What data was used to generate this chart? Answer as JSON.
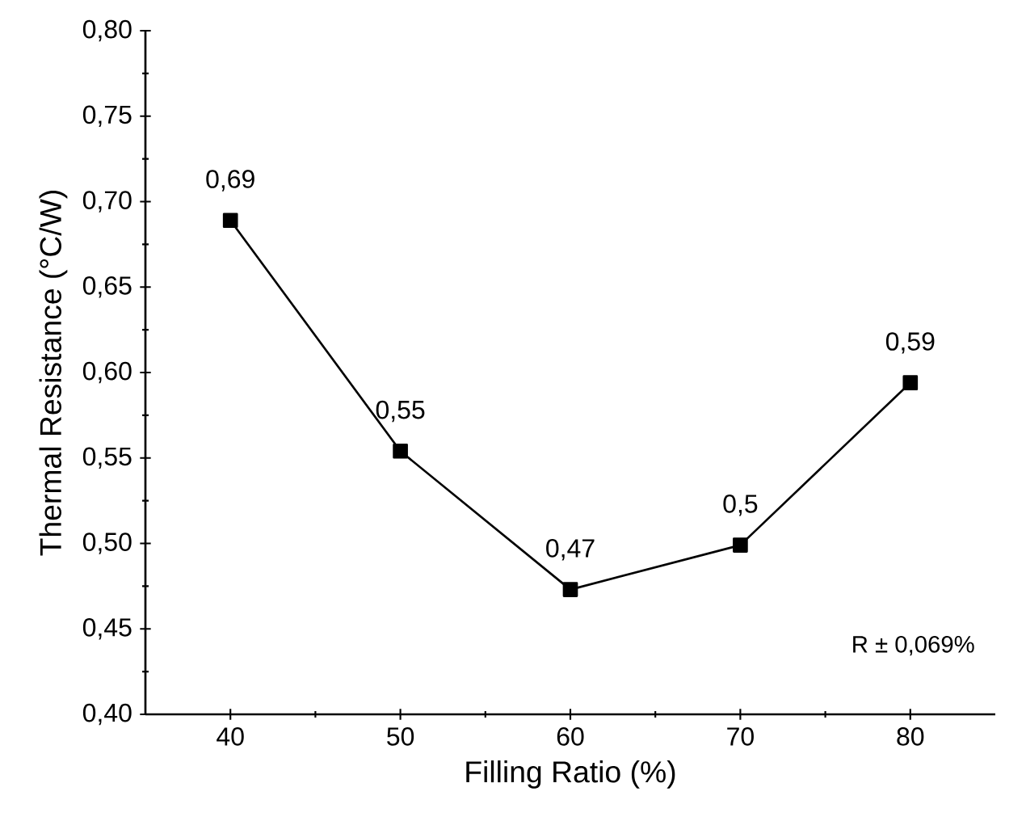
{
  "chart_data": {
    "type": "line",
    "xlabel": "Filling Ratio (%)",
    "ylabel": "Thermal Resistance (°C/W)",
    "x": [
      40,
      50,
      60,
      70,
      80
    ],
    "series": [
      {
        "color": "#000000",
        "values": [
          0.689,
          0.554,
          0.473,
          0.499,
          0.594
        ],
        "value_labels": [
          "0,69",
          "0,55",
          "0,47",
          "0,5",
          "0,59"
        ]
      }
    ],
    "xlim": [
      35,
      85
    ],
    "xticks": [
      40,
      50,
      60,
      70,
      80
    ],
    "ylim": [
      0.4,
      0.8
    ],
    "yticks": [
      {
        "value": 0.4,
        "label": "0,40"
      },
      {
        "value": 0.45,
        "label": "0,45"
      },
      {
        "value": 0.5,
        "label": "0,50"
      },
      {
        "value": 0.55,
        "label": "0,55"
      },
      {
        "value": 0.6,
        "label": "0,60"
      },
      {
        "value": 0.65,
        "label": "0,65"
      },
      {
        "value": 0.7,
        "label": "0,70"
      },
      {
        "value": 0.75,
        "label": "0,75"
      },
      {
        "value": 0.8,
        "label": "0,80"
      }
    ],
    "marker": "square",
    "line_style": "solid",
    "grid": false,
    "annotations": [
      "R ± 0,069%"
    ]
  }
}
